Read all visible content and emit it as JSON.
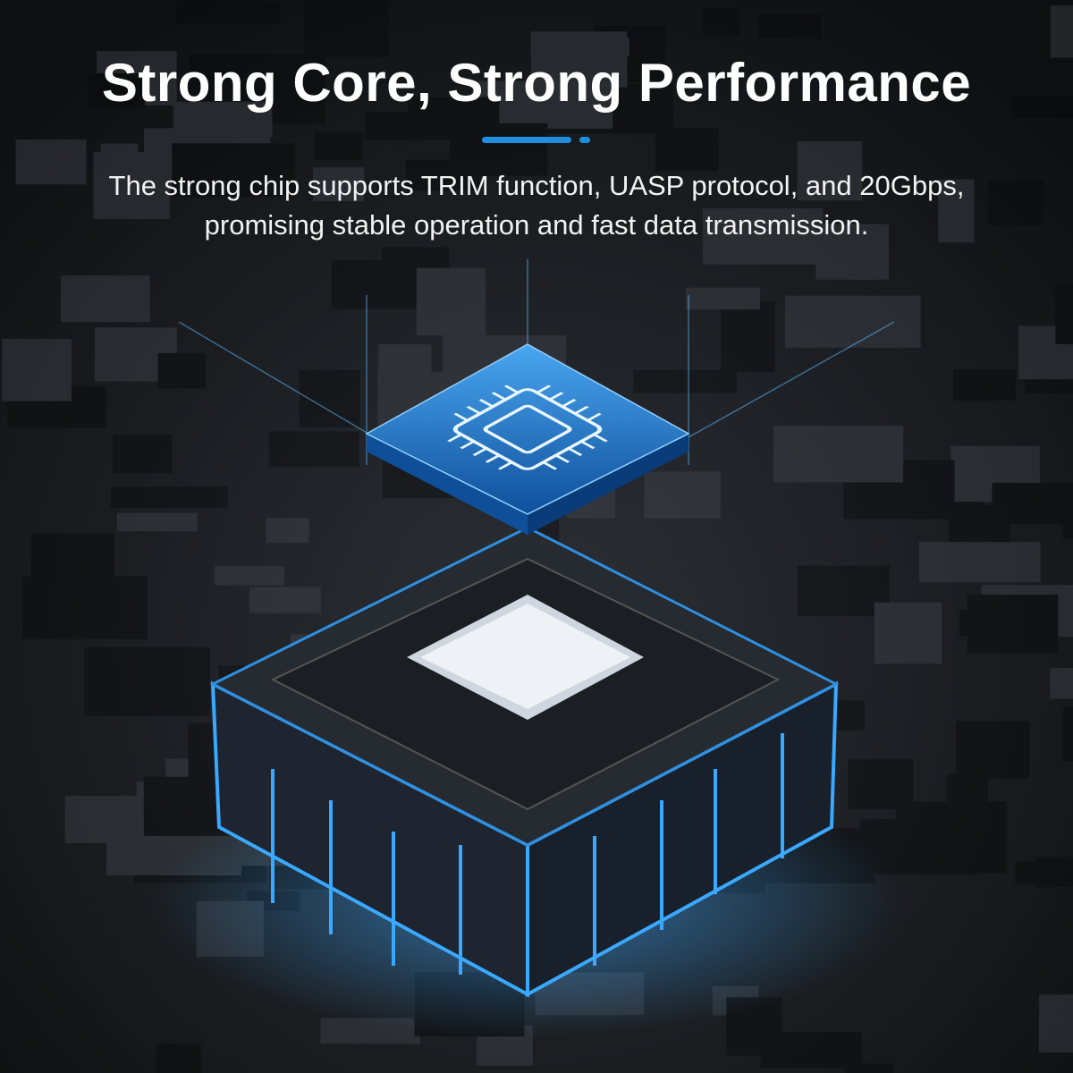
{
  "headline": {
    "title": "Strong Core, Strong Performance",
    "subtitle_line1": "The strong chip supports TRIM function, UASP protocol, and 20Gbps,",
    "subtitle_line2": "promising stable operation and fast data transmission."
  },
  "colors": {
    "accent": "#1e8fe0",
    "background": "#16181b",
    "glow": "#3aa8ff"
  },
  "illustration": {
    "icons": [
      "cpu-chip-icon"
    ]
  }
}
